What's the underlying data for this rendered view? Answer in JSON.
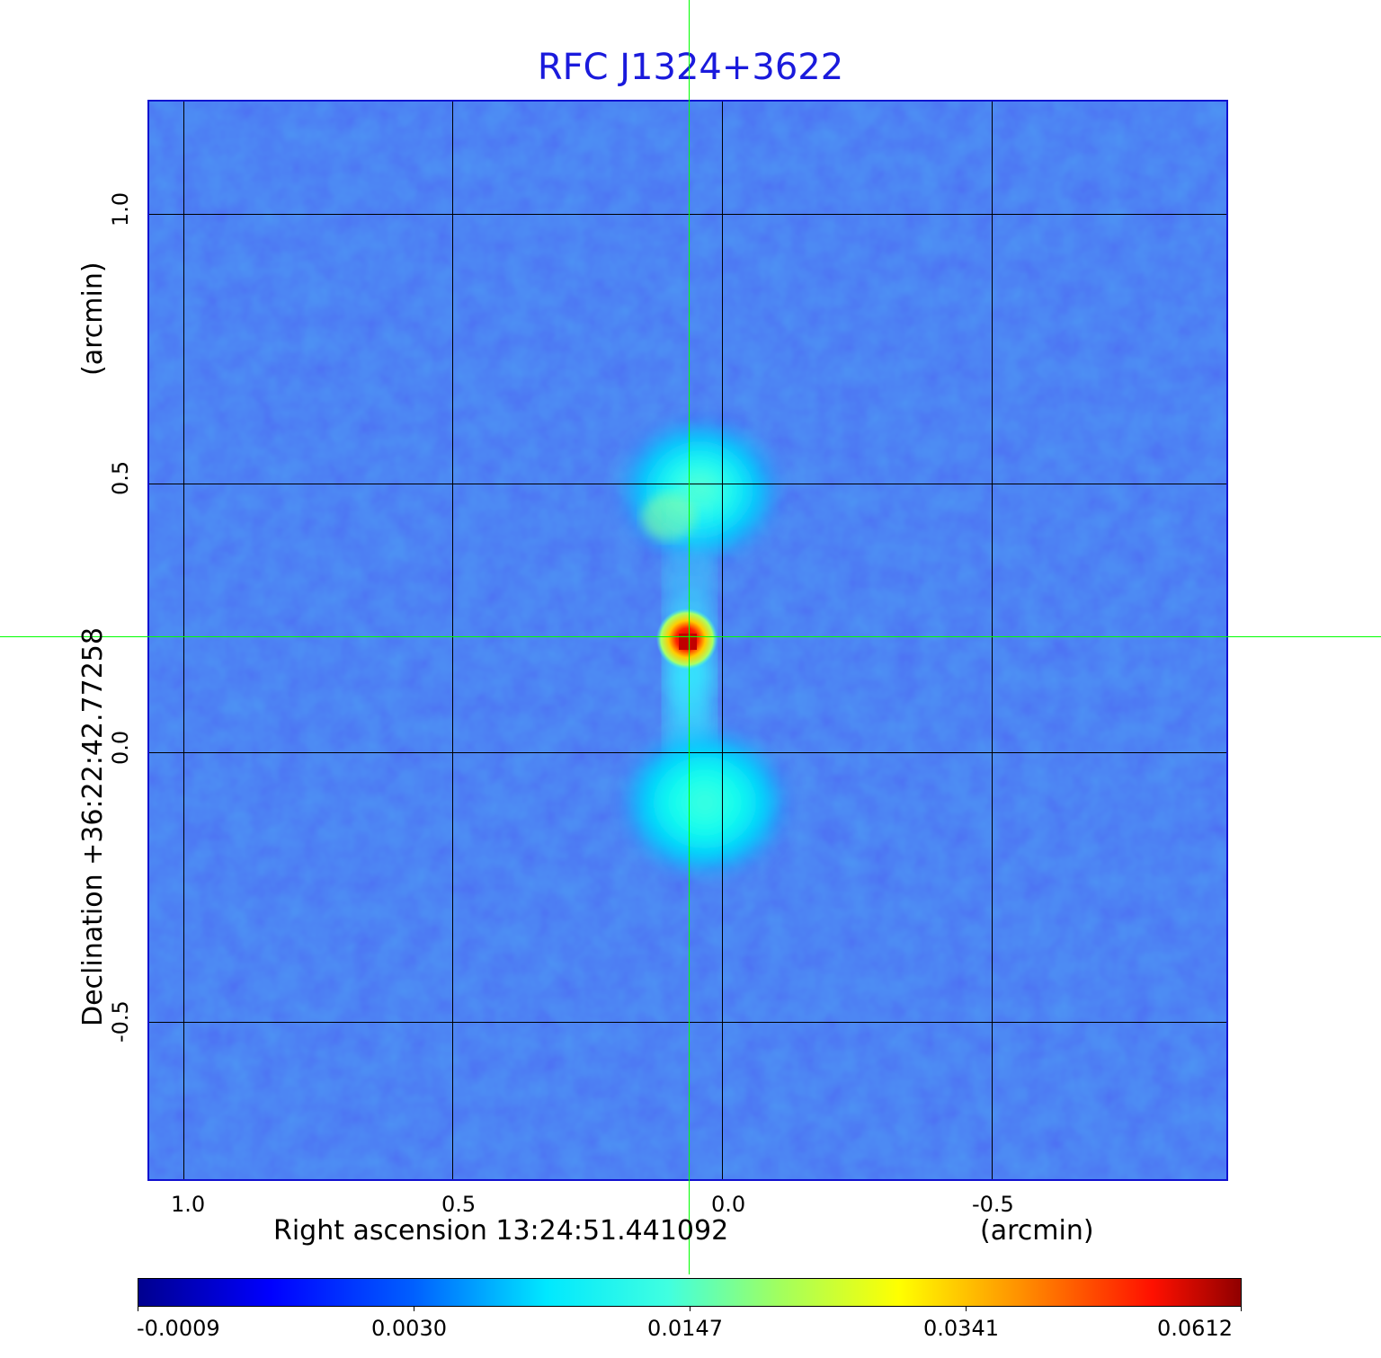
{
  "title": "RFC J1324+3622",
  "x_axis": {
    "label": "Right ascension  13:24:51.441092",
    "unit": "(arcmin)",
    "ticks": [
      "1.0",
      "0.5",
      "0.0",
      "-0.5"
    ],
    "tick_values": [
      1.0,
      0.5,
      0.0,
      -0.5
    ]
  },
  "y_axis": {
    "label": "Declination  +36:22:42.77258",
    "unit": "(arcmin)",
    "ticks": [
      "1.0",
      "0.5",
      "0.0",
      "-0.5"
    ],
    "tick_values": [
      1.0,
      0.5,
      0.0,
      -0.5
    ]
  },
  "colorbar": {
    "ticks": [
      "-0.0009",
      "0.0030",
      "0.0147",
      "0.0341",
      "0.0612"
    ],
    "colormap": "jet",
    "colors": [
      "#00008f",
      "#0000ff",
      "#00ffff",
      "#ffff00",
      "#ff0000",
      "#800000"
    ]
  },
  "crosshair_color": "#00ff00",
  "background_color": "#2255ee"
}
